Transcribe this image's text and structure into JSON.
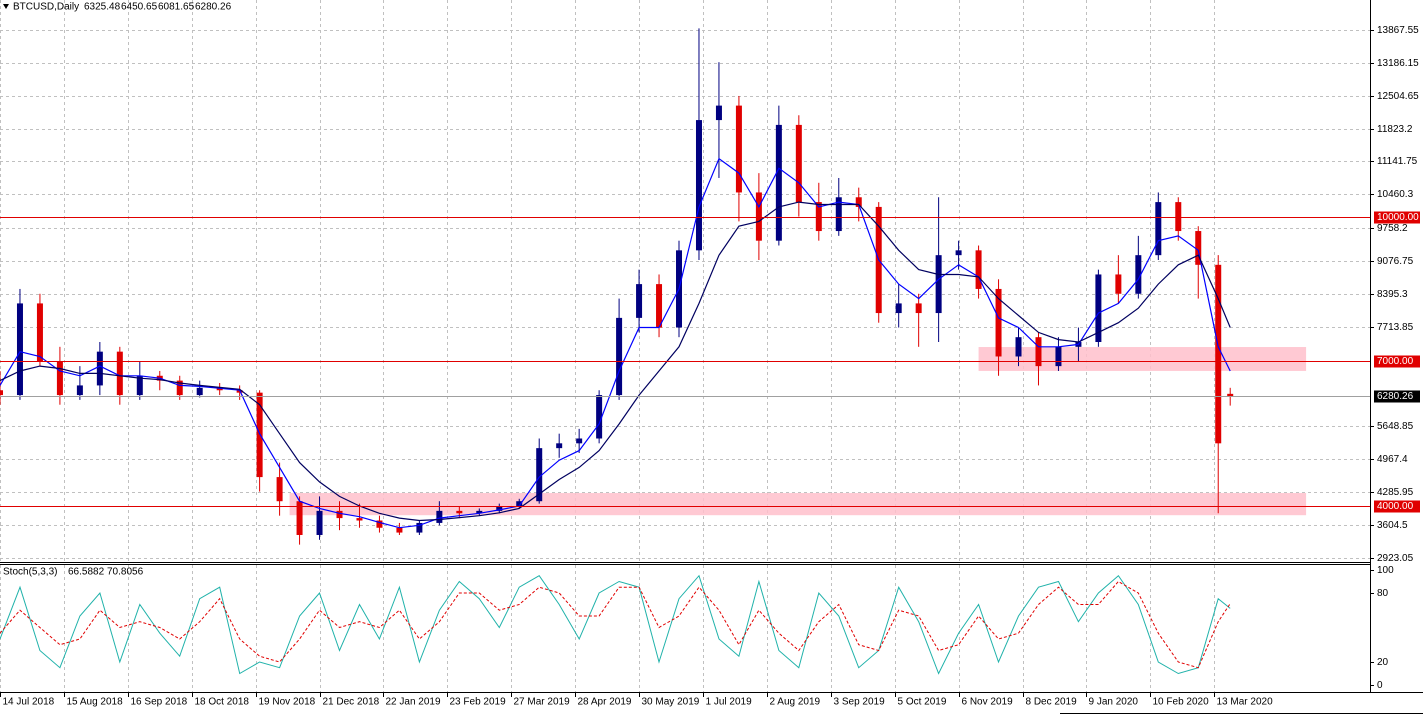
{
  "chart_data": [
    {
      "type": "candlestick",
      "title": "BTCUSD,Daily",
      "x": [
        "2018-07-14",
        "2018-07-24",
        "2018-08-03",
        "2018-08-13",
        "2018-08-23",
        "2018-09-02",
        "2018-09-12",
        "2018-09-22",
        "2018-10-02",
        "2018-10-12",
        "2018-10-22",
        "2018-11-01",
        "2018-11-11",
        "2018-11-21",
        "2018-12-01",
        "2018-12-11",
        "2018-12-21",
        "2018-12-31",
        "2019-01-10",
        "2019-01-20",
        "2019-01-30",
        "2019-02-09",
        "2019-02-19",
        "2019-03-01",
        "2019-03-11",
        "2019-03-21",
        "2019-03-31",
        "2019-04-10",
        "2019-04-20",
        "2019-04-30",
        "2019-05-10",
        "2019-05-20",
        "2019-05-30",
        "2019-06-09",
        "2019-06-19",
        "2019-06-29",
        "2019-07-09",
        "2019-07-19",
        "2019-07-29",
        "2019-08-08",
        "2019-08-18",
        "2019-08-28",
        "2019-09-07",
        "2019-09-17",
        "2019-09-27",
        "2019-10-07",
        "2019-10-17",
        "2019-10-27",
        "2019-11-06",
        "2019-11-16",
        "2019-11-26",
        "2019-12-06",
        "2019-12-16",
        "2019-12-26",
        "2020-01-05",
        "2020-01-15",
        "2020-01-25",
        "2020-02-04",
        "2020-02-14",
        "2020-02-24",
        "2020-03-05",
        "2020-03-15",
        "2020-03-21"
      ],
      "open": [
        6400,
        6300,
        8200,
        7000,
        6300,
        6500,
        7200,
        6300,
        6700,
        6600,
        6300,
        6450,
        6400,
        6350,
        4600,
        4100,
        3400,
        3900,
        3750,
        3700,
        3550,
        3450,
        3650,
        3900,
        3850,
        3900,
        4000,
        4100,
        5200,
        5300,
        5400,
        6300,
        7900,
        8600,
        7700,
        9300,
        12000,
        12300,
        10500,
        9500,
        11900,
        10300,
        9700,
        10400,
        10200,
        8000,
        8200,
        8000,
        9200,
        9300,
        8500,
        7100,
        7500,
        6900,
        7300,
        7400,
        8800,
        8400,
        9200,
        10300,
        9700,
        9000,
        6325.48
      ],
      "high": [
        6800,
        8500,
        8400,
        7300,
        6900,
        7400,
        7300,
        7000,
        6800,
        6700,
        6600,
        6550,
        6500,
        6400,
        4900,
        4200,
        4200,
        4100,
        4050,
        3800,
        3650,
        3700,
        4100,
        4000,
        3950,
        4050,
        4150,
        5400,
        5500,
        5600,
        6400,
        8300,
        8900,
        8800,
        9500,
        13900,
        13200,
        12500,
        10900,
        12300,
        12100,
        10700,
        10800,
        10600,
        10300,
        8600,
        8400,
        10400,
        9500,
        9400,
        8700,
        7700,
        7600,
        7500,
        7700,
        8900,
        9200,
        9600,
        10500,
        10400,
        9800,
        9200,
        6450.65
      ],
      "low": [
        6100,
        6200,
        6900,
        6100,
        6200,
        6300,
        6100,
        6200,
        6400,
        6200,
        6250,
        6300,
        6200,
        4300,
        3800,
        3200,
        3300,
        3500,
        3550,
        3450,
        3400,
        3400,
        3600,
        3750,
        3800,
        3850,
        3950,
        4050,
        5000,
        5100,
        5300,
        6200,
        7600,
        7500,
        7500,
        9100,
        10800,
        9900,
        9100,
        9400,
        10000,
        9500,
        9600,
        9900,
        7800,
        7700,
        7300,
        7400,
        8900,
        8300,
        6700,
        6900,
        6500,
        6800,
        7000,
        7300,
        8200,
        8300,
        9100,
        9500,
        8300,
        3850,
        6081.65
      ],
      "close": [
        6300,
        8200,
        7000,
        6300,
        6500,
        7200,
        6300,
        6700,
        6600,
        6300,
        6450,
        6400,
        6350,
        4600,
        4100,
        3400,
        3900,
        3750,
        3700,
        3550,
        3450,
        3650,
        3900,
        3850,
        3900,
        4000,
        4100,
        5200,
        5300,
        5400,
        6300,
        7900,
        8600,
        7700,
        9300,
        12000,
        12300,
        10500,
        9500,
        11900,
        10300,
        9700,
        10400,
        10200,
        8000,
        8200,
        8000,
        9200,
        9300,
        8500,
        7100,
        7500,
        6900,
        7300,
        7400,
        8800,
        8400,
        9200,
        10300,
        9700,
        9000,
        5300,
        6280.26
      ],
      "up_color": "#000080",
      "down_color": "#e00000",
      "ribbon": [
        {
          "color": "#0000ff",
          "values": [
            6500,
            7200,
            7100,
            6800,
            6700,
            6900,
            6700,
            6700,
            6650,
            6500,
            6480,
            6440,
            6400,
            5500,
            4800,
            4100,
            3950,
            3850,
            3780,
            3660,
            3550,
            3600,
            3750,
            3800,
            3850,
            3920,
            4000,
            4600,
            4950,
            5150,
            5700,
            6800,
            7700,
            7700,
            8500,
            10200,
            11200,
            10900,
            10200,
            11000,
            10700,
            10200,
            10300,
            10250,
            9100,
            8600,
            8300,
            8700,
            9000,
            8750,
            7900,
            7700,
            7300,
            7300,
            7350,
            8000,
            8200,
            8700,
            9500,
            9600,
            9300,
            7300,
            6800
          ]
        },
        {
          "color": "#000060",
          "values": [
            6600,
            6800,
            6900,
            6850,
            6750,
            6750,
            6700,
            6650,
            6620,
            6550,
            6500,
            6460,
            6420,
            6100,
            5500,
            4900,
            4500,
            4200,
            4000,
            3850,
            3750,
            3700,
            3720,
            3760,
            3800,
            3860,
            3950,
            4250,
            4550,
            4800,
            5150,
            5700,
            6300,
            6800,
            7300,
            8200,
            9200,
            9800,
            9900,
            10200,
            10300,
            10250,
            10250,
            10250,
            9800,
            9300,
            8900,
            8800,
            8800,
            8750,
            8300,
            7950,
            7600,
            7450,
            7400,
            7600,
            7800,
            8100,
            8600,
            9000,
            9200,
            8300,
            7700
          ]
        }
      ],
      "xlim": [
        "2018-07-14",
        "2020-05-30"
      ],
      "xticks": [
        {
          "value": "2018-07-14",
          "label": "14 Jul 2018"
        },
        {
          "value": "2018-08-15",
          "label": "15 Aug 2018"
        },
        {
          "value": "2018-09-16",
          "label": "16 Sep 2018"
        },
        {
          "value": "2018-10-18",
          "label": "18 Oct 2018"
        },
        {
          "value": "2018-11-19",
          "label": "19 Nov 2018"
        },
        {
          "value": "2018-12-21",
          "label": "21 Dec 2018"
        },
        {
          "value": "2019-01-22",
          "label": "22 Jan 2019"
        },
        {
          "value": "2019-02-23",
          "label": "23 Feb 2019"
        },
        {
          "value": "2019-03-27",
          "label": "27 Mar 2019"
        },
        {
          "value": "2019-04-28",
          "label": "28 Apr 2019"
        },
        {
          "value": "2019-05-30",
          "label": "30 May 2019"
        },
        {
          "value": "2019-07-01",
          "label": "1 Jul 2019"
        },
        {
          "value": "2019-08-02",
          "label": "2 Aug 2019"
        },
        {
          "value": "2019-09-03",
          "label": "3 Sep 2019"
        },
        {
          "value": "2019-10-05",
          "label": "5 Oct 2019"
        },
        {
          "value": "2019-11-06",
          "label": "6 Nov 2019"
        },
        {
          "value": "2019-12-08",
          "label": "8 Dec 2019"
        },
        {
          "value": "2020-01-09",
          "label": "9 Jan 2020"
        },
        {
          "value": "2020-02-10",
          "label": "10 Feb 2020"
        },
        {
          "value": "2020-03-13",
          "label": "13 Mar 2020"
        }
      ],
      "ylim": [
        2840,
        14489
      ],
      "yticks": [
        13867.55,
        13186.15,
        12504.65,
        11823.2,
        11141.75,
        10460.3,
        9758.2,
        9076.75,
        8395.3,
        7713.85,
        5648.85,
        4967.4,
        4285.95,
        3604.5,
        2923.05
      ],
      "grid": true,
      "levels": [
        {
          "value": 10000,
          "label": "10000.00"
        },
        {
          "value": 7000,
          "label": "7000.00"
        },
        {
          "value": 4000,
          "label": "4000.00"
        }
      ],
      "level_color": "#e00000",
      "zones": [
        {
          "from": 6800,
          "to": 7296,
          "start": "2019-11-16",
          "end": "2020-04-28"
        },
        {
          "from": 3810,
          "to": 4270,
          "start": "2018-12-06",
          "end": "2020-04-28"
        }
      ],
      "zone_color": "#ffc0cb"
    },
    {
      "type": "line",
      "title": "Stoch(5,3,3)",
      "x": [
        "2018-07-14",
        "2018-07-24",
        "2018-08-03",
        "2018-08-13",
        "2018-08-23",
        "2018-09-02",
        "2018-09-12",
        "2018-09-22",
        "2018-10-02",
        "2018-10-12",
        "2018-10-22",
        "2018-11-01",
        "2018-11-11",
        "2018-11-21",
        "2018-12-01",
        "2018-12-11",
        "2018-12-21",
        "2018-12-31",
        "2019-01-10",
        "2019-01-20",
        "2019-01-30",
        "2019-02-09",
        "2019-02-19",
        "2019-03-01",
        "2019-03-11",
        "2019-03-21",
        "2019-03-31",
        "2019-04-10",
        "2019-04-20",
        "2019-04-30",
        "2019-05-10",
        "2019-05-20",
        "2019-05-30",
        "2019-06-09",
        "2019-06-19",
        "2019-06-29",
        "2019-07-09",
        "2019-07-19",
        "2019-07-29",
        "2019-08-08",
        "2019-08-18",
        "2019-08-28",
        "2019-09-07",
        "2019-09-17",
        "2019-09-27",
        "2019-10-07",
        "2019-10-17",
        "2019-10-27",
        "2019-11-06",
        "2019-11-16",
        "2019-11-26",
        "2019-12-06",
        "2019-12-16",
        "2019-12-26",
        "2020-01-05",
        "2020-01-15",
        "2020-01-25",
        "2020-02-04",
        "2020-02-14",
        "2020-02-24",
        "2020-03-05",
        "2020-03-15",
        "2020-03-21"
      ],
      "series": [
        {
          "color": "#20b2aa",
          "values": [
            40,
            85,
            30,
            15,
            60,
            80,
            20,
            70,
            45,
            25,
            75,
            85,
            10,
            20,
            15,
            60,
            80,
            30,
            70,
            40,
            85,
            20,
            65,
            90,
            75,
            50,
            85,
            95,
            70,
            40,
            80,
            90,
            85,
            20,
            75,
            95,
            40,
            25,
            90,
            30,
            15,
            80,
            60,
            15,
            30,
            85,
            55,
            10,
            45,
            70,
            20,
            60,
            85,
            90,
            55,
            80,
            95,
            70,
            20,
            10,
            15,
            75,
            66.5882
          ]
        },
        {
          "color": "#e00000",
          "dashed": true,
          "values": [
            45,
            65,
            50,
            35,
            40,
            65,
            50,
            55,
            50,
            40,
            55,
            75,
            40,
            25,
            20,
            40,
            65,
            50,
            55,
            50,
            65,
            40,
            55,
            80,
            80,
            65,
            70,
            85,
            80,
            60,
            60,
            85,
            85,
            50,
            60,
            85,
            65,
            35,
            65,
            45,
            30,
            55,
            70,
            35,
            30,
            65,
            60,
            30,
            35,
            60,
            40,
            45,
            70,
            85,
            70,
            70,
            90,
            80,
            45,
            20,
            15,
            55,
            70.8056
          ]
        }
      ],
      "xlim": [
        "2018-07-14",
        "2020-05-30"
      ],
      "ylim": [
        -6.1,
        105.2
      ],
      "yticks": [
        0,
        20,
        80,
        100
      ]
    }
  ]
}
